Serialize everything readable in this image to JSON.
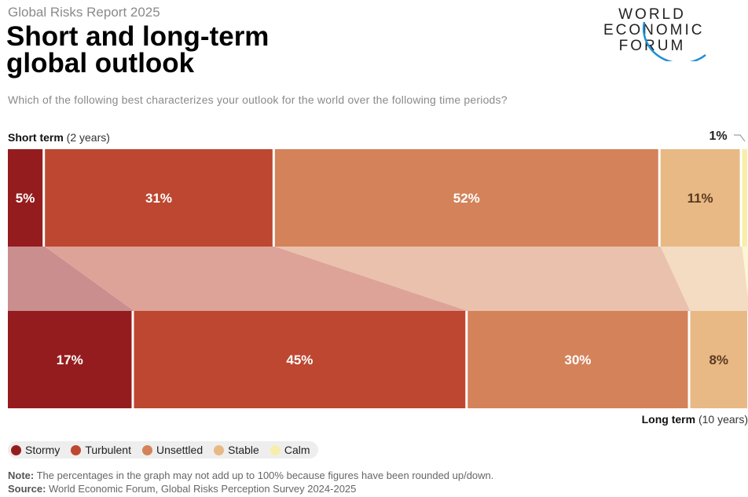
{
  "header": {
    "report": "Global Risks Report 2025",
    "title_line1": "Short and long-term",
    "title_line2": "global outlook",
    "logo": [
      "WORLD",
      "ECONOMIC",
      "FORUM"
    ]
  },
  "question": "Which of the following best characterizes your outlook for the world over the following time periods?",
  "rows": {
    "short_bold": "Short term",
    "short_rest": " (2 years)",
    "long_bold": "Long term",
    "long_rest": " (10 years)"
  },
  "colors": {
    "Stormy": "#951c1e",
    "Turbulent": "#bd4730",
    "Unsettled": "#d4825a",
    "Stable": "#e8b985",
    "Calm": "#f7eeaa"
  },
  "chart_data": {
    "type": "bar",
    "orientation": "horizontal-stacked",
    "categories": [
      "Short term (2 years)",
      "Long term (10 years)"
    ],
    "series": [
      {
        "name": "Stormy",
        "values": [
          5,
          17
        ]
      },
      {
        "name": "Turbulent",
        "values": [
          31,
          45
        ]
      },
      {
        "name": "Unsettled",
        "values": [
          52,
          30
        ]
      },
      {
        "name": "Stable",
        "values": [
          11,
          8
        ]
      },
      {
        "name": "Calm",
        "values": [
          1,
          1
        ]
      }
    ],
    "labels": [
      [
        "5%",
        "31%",
        "52%",
        "11%",
        "1%"
      ],
      [
        "17%",
        "45%",
        "30%",
        "8%",
        ""
      ]
    ],
    "unit": "%",
    "legend_position": "bottom-left"
  },
  "notes": {
    "note_label": "Note:",
    "note_text": " The percentages in the graph may not add up to 100% because figures have been rounded up/down.",
    "source_label": "Source:",
    "source_text": " World Economic Forum, Global Risks Perception Survey 2024-2025"
  }
}
